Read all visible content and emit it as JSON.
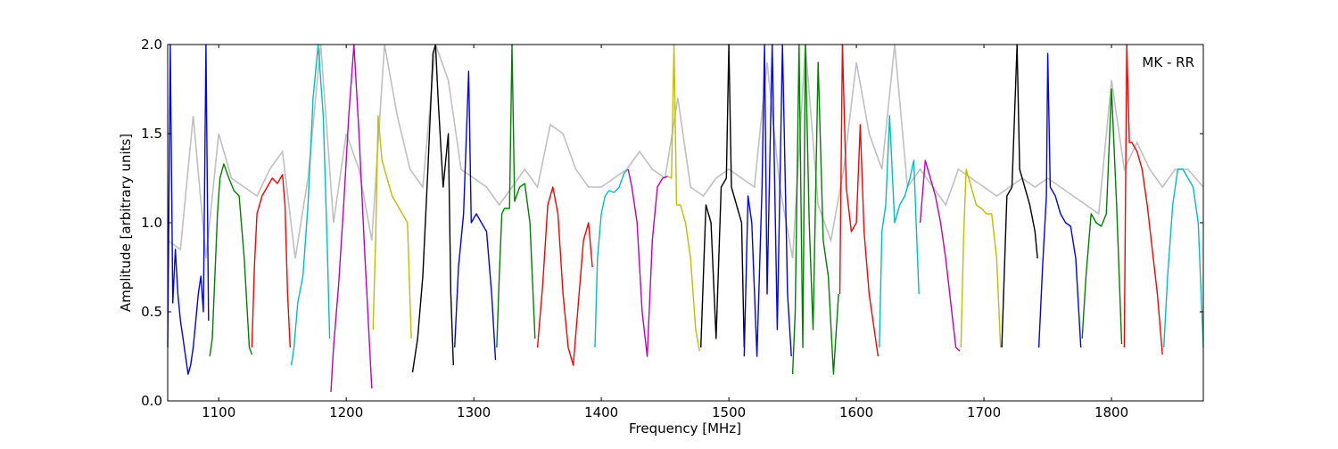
{
  "chart_data": {
    "type": "line",
    "annotation": "MK - RR",
    "xlabel": "Frequency [MHz]",
    "ylabel": "Amplitude [arbitrary units]",
    "xlim": [
      1060,
      1872
    ],
    "ylim": [
      0.0,
      2.0
    ],
    "xticks": [
      1100,
      1200,
      1300,
      1400,
      1500,
      1600,
      1700,
      1800
    ],
    "yticks": [
      0.0,
      0.5,
      1.0,
      1.5,
      2.0
    ],
    "xtick_labels": [
      "1100",
      "1200",
      "1300",
      "1400",
      "1500",
      "1600",
      "1700",
      "1800"
    ],
    "ytick_labels": [
      "0.0",
      "0.5",
      "1.0",
      "1.5",
      "2.0"
    ],
    "grid": false,
    "background_color": "#c0c0c0",
    "series": [
      {
        "color": "#0000ff",
        "x": [
          1060,
          1062,
          1064,
          1066,
          1068,
          1070,
          1072,
          1074,
          1076,
          1078,
          1080,
          1082,
          1084,
          1086,
          1088,
          1090,
          1092
        ],
        "y": [
          0.3,
          2.0,
          0.55,
          0.85,
          0.6,
          0.45,
          0.35,
          0.25,
          0.15,
          0.2,
          0.3,
          0.45,
          0.6,
          0.7,
          0.5,
          2.0,
          0.45
        ]
      },
      {
        "color": "#008000",
        "x": [
          1093,
          1095,
          1097,
          1099,
          1101,
          1104,
          1108,
          1112,
          1116,
          1120,
          1124,
          1126
        ],
        "y": [
          0.25,
          0.35,
          0.7,
          1.05,
          1.25,
          1.33,
          1.25,
          1.18,
          1.15,
          0.8,
          0.3,
          0.26
        ]
      },
      {
        "color": "#ff0000",
        "x": [
          1126,
          1128,
          1130,
          1134,
          1138,
          1142,
          1146,
          1150,
          1152,
          1154,
          1156
        ],
        "y": [
          0.3,
          0.75,
          1.05,
          1.15,
          1.2,
          1.25,
          1.22,
          1.27,
          1.1,
          0.6,
          0.3
        ]
      },
      {
        "color": "#00bfbf",
        "x": [
          1157,
          1159,
          1162,
          1166,
          1170,
          1174,
          1178,
          1182,
          1185,
          1187
        ],
        "y": [
          0.2,
          0.3,
          0.55,
          0.7,
          1.1,
          1.7,
          2.0,
          1.6,
          0.9,
          0.35
        ]
      },
      {
        "color": "#bf00bf",
        "x": [
          1188,
          1190,
          1194,
          1198,
          1202,
          1206,
          1210,
          1214,
          1218,
          1220
        ],
        "y": [
          0.05,
          0.3,
          0.65,
          1.1,
          1.6,
          2.0,
          1.5,
          0.9,
          0.35,
          0.07
        ]
      },
      {
        "color": "#bfbf00",
        "x": [
          1221,
          1223,
          1225,
          1228,
          1232,
          1236,
          1240,
          1244,
          1248,
          1251
        ],
        "y": [
          0.4,
          0.9,
          1.6,
          1.35,
          1.25,
          1.15,
          1.1,
          1.05,
          1.0,
          0.35
        ]
      },
      {
        "color": "#000000",
        "x": [
          1252,
          1256,
          1260,
          1264,
          1268,
          1270,
          1272,
          1276,
          1280,
          1282,
          1284
        ],
        "y": [
          0.16,
          0.35,
          0.7,
          1.3,
          1.95,
          2.0,
          1.7,
          1.2,
          1.5,
          0.6,
          0.2
        ]
      },
      {
        "color": "#0000ff",
        "x": [
          1285,
          1288,
          1292,
          1296,
          1298,
          1302,
          1306,
          1310,
          1314,
          1317
        ],
        "y": [
          0.3,
          0.75,
          1.05,
          1.85,
          1.0,
          1.05,
          1.0,
          0.95,
          0.6,
          0.23
        ]
      },
      {
        "color": "#008000",
        "x": [
          1318,
          1320,
          1322,
          1324,
          1328,
          1330,
          1332,
          1336,
          1340,
          1344,
          1348
        ],
        "y": [
          0.3,
          0.7,
          1.05,
          1.08,
          1.08,
          2.0,
          1.12,
          1.2,
          1.22,
          1.0,
          0.35
        ]
      },
      {
        "color": "#ff0000",
        "x": [
          1350,
          1354,
          1358,
          1362,
          1366,
          1370,
          1374,
          1378,
          1382,
          1386,
          1390,
          1393
        ],
        "y": [
          0.3,
          0.65,
          1.1,
          1.2,
          1.05,
          0.6,
          0.3,
          0.2,
          0.55,
          0.9,
          1.0,
          0.75
        ]
      },
      {
        "color": "#00bfbf",
        "x": [
          1395,
          1397,
          1400,
          1403,
          1406,
          1410,
          1414,
          1418,
          1421
        ],
        "y": [
          0.3,
          0.8,
          1.05,
          1.15,
          1.18,
          1.17,
          1.2,
          1.28,
          1.3
        ]
      },
      {
        "color": "#bf00bf",
        "x": [
          1421,
          1424,
          1428,
          1432,
          1436,
          1440,
          1444,
          1448,
          1452
        ],
        "y": [
          1.3,
          1.2,
          1.0,
          0.5,
          0.25,
          0.9,
          1.2,
          1.25,
          1.26
        ]
      },
      {
        "color": "#bfbf00",
        "x": [
          1452,
          1455,
          1457,
          1459,
          1462,
          1466,
          1470,
          1474,
          1477
        ],
        "y": [
          1.26,
          1.25,
          2.0,
          1.1,
          1.1,
          1.0,
          0.8,
          0.4,
          0.28
        ]
      },
      {
        "color": "#000000",
        "x": [
          1478,
          1482,
          1486,
          1490,
          1494,
          1498,
          1500,
          1502,
          1506,
          1510,
          1512
        ],
        "y": [
          0.3,
          1.1,
          1.0,
          0.35,
          1.2,
          1.25,
          2.0,
          1.2,
          1.1,
          1.0,
          0.3
        ]
      },
      {
        "color": "#0000ff",
        "x": [
          1512,
          1515,
          1518,
          1522,
          1526,
          1528,
          1530,
          1534,
          1538,
          1542,
          1546,
          1549
        ],
        "y": [
          0.25,
          1.15,
          1.0,
          0.25,
          1.2,
          2.0,
          0.6,
          2.0,
          0.4,
          2.0,
          0.6,
          0.25
        ]
      },
      {
        "color": "#008000",
        "x": [
          1550,
          1552,
          1555,
          1558,
          1560,
          1563,
          1566,
          1570,
          1574,
          1578,
          1582,
          1586
        ],
        "y": [
          0.15,
          0.5,
          2.0,
          0.3,
          2.0,
          1.0,
          0.4,
          1.9,
          0.9,
          0.7,
          0.15,
          0.6
        ]
      },
      {
        "color": "#ff0000",
        "x": [
          1587,
          1589,
          1592,
          1596,
          1600,
          1603,
          1606,
          1610,
          1614,
          1617
        ],
        "y": [
          0.6,
          2.0,
          1.2,
          0.95,
          1.0,
          1.55,
          0.95,
          0.6,
          0.4,
          0.25
        ]
      },
      {
        "color": "#00bfbf",
        "x": [
          1618,
          1620,
          1623,
          1626,
          1630,
          1634,
          1638,
          1642,
          1645,
          1649
        ],
        "y": [
          0.3,
          0.95,
          1.1,
          1.6,
          1.0,
          1.1,
          1.15,
          1.25,
          1.35,
          0.6
        ]
      },
      {
        "color": "#bf00bf",
        "x": [
          1650,
          1654,
          1658,
          1662,
          1666,
          1670,
          1674,
          1678,
          1681
        ],
        "y": [
          1.0,
          1.35,
          1.25,
          1.15,
          1.0,
          0.8,
          0.55,
          0.3,
          0.28
        ]
      },
      {
        "color": "#bfbf00",
        "x": [
          1682,
          1684,
          1686,
          1690,
          1694,
          1698,
          1702,
          1706,
          1710,
          1713
        ],
        "y": [
          0.3,
          0.9,
          1.3,
          1.2,
          1.1,
          1.08,
          1.05,
          1.05,
          0.8,
          0.3
        ]
      },
      {
        "color": "#000000",
        "x": [
          1714,
          1718,
          1722,
          1725,
          1726,
          1728,
          1732,
          1736,
          1740,
          1742
        ],
        "y": [
          0.3,
          1.15,
          1.2,
          1.8,
          2.0,
          1.3,
          1.2,
          1.1,
          0.95,
          0.8
        ]
      },
      {
        "color": "#0000ff",
        "x": [
          1743,
          1746,
          1749,
          1750,
          1752,
          1756,
          1760,
          1764,
          1768,
          1772,
          1776
        ],
        "y": [
          0.3,
          0.75,
          1.15,
          1.95,
          1.2,
          1.15,
          1.05,
          1.0,
          0.98,
          0.8,
          0.3
        ]
      },
      {
        "color": "#008000",
        "x": [
          1777,
          1780,
          1784,
          1788,
          1792,
          1796,
          1800,
          1804,
          1808
        ],
        "y": [
          0.35,
          0.7,
          1.05,
          1.0,
          0.98,
          1.05,
          1.75,
          1.1,
          0.32
        ]
      },
      {
        "color": "#ff0000",
        "x": [
          1810,
          1812,
          1814,
          1816,
          1820,
          1824,
          1828,
          1832,
          1836,
          1840
        ],
        "y": [
          0.3,
          2.0,
          1.45,
          1.45,
          1.4,
          1.3,
          1.1,
          0.85,
          0.6,
          0.26
        ]
      },
      {
        "color": "#00bfbf",
        "x": [
          1841,
          1844,
          1848,
          1852,
          1856,
          1860,
          1864,
          1868,
          1872
        ],
        "y": [
          0.3,
          0.7,
          1.1,
          1.3,
          1.3,
          1.25,
          1.2,
          1.0,
          0.3
        ]
      }
    ],
    "background": {
      "x": [
        1060,
        1070,
        1080,
        1090,
        1100,
        1110,
        1120,
        1130,
        1140,
        1150,
        1160,
        1170,
        1180,
        1190,
        1200,
        1210,
        1220,
        1230,
        1240,
        1250,
        1260,
        1270,
        1280,
        1290,
        1300,
        1310,
        1320,
        1330,
        1340,
        1350,
        1360,
        1370,
        1380,
        1390,
        1400,
        1410,
        1420,
        1430,
        1440,
        1450,
        1460,
        1470,
        1480,
        1490,
        1500,
        1510,
        1520,
        1530,
        1540,
        1550,
        1560,
        1570,
        1580,
        1590,
        1600,
        1610,
        1620,
        1630,
        1640,
        1650,
        1660,
        1670,
        1680,
        1690,
        1700,
        1710,
        1720,
        1730,
        1740,
        1750,
        1760,
        1770,
        1780,
        1790,
        1800,
        1810,
        1820,
        1830,
        1840,
        1850,
        1860,
        1872
      ],
      "y": [
        0.9,
        0.85,
        1.6,
        0.8,
        1.5,
        1.25,
        1.2,
        1.15,
        1.3,
        1.4,
        0.8,
        1.25,
        2.0,
        1.0,
        1.5,
        1.3,
        0.9,
        2.0,
        1.6,
        1.3,
        1.2,
        2.0,
        1.8,
        1.3,
        1.25,
        1.2,
        1.1,
        1.2,
        1.3,
        1.2,
        1.55,
        1.5,
        1.3,
        1.2,
        1.2,
        1.25,
        1.3,
        1.4,
        1.3,
        1.25,
        1.7,
        1.2,
        1.15,
        1.25,
        1.3,
        1.25,
        1.2,
        1.9,
        1.2,
        0.8,
        2.0,
        1.1,
        0.9,
        1.3,
        1.9,
        1.5,
        1.3,
        2.0,
        1.2,
        1.3,
        1.2,
        1.1,
        1.3,
        1.25,
        1.2,
        1.15,
        1.2,
        1.25,
        1.2,
        1.25,
        1.2,
        1.15,
        1.1,
        1.05,
        1.8,
        1.3,
        1.45,
        1.3,
        1.2,
        1.3,
        1.3,
        1.2
      ]
    }
  }
}
